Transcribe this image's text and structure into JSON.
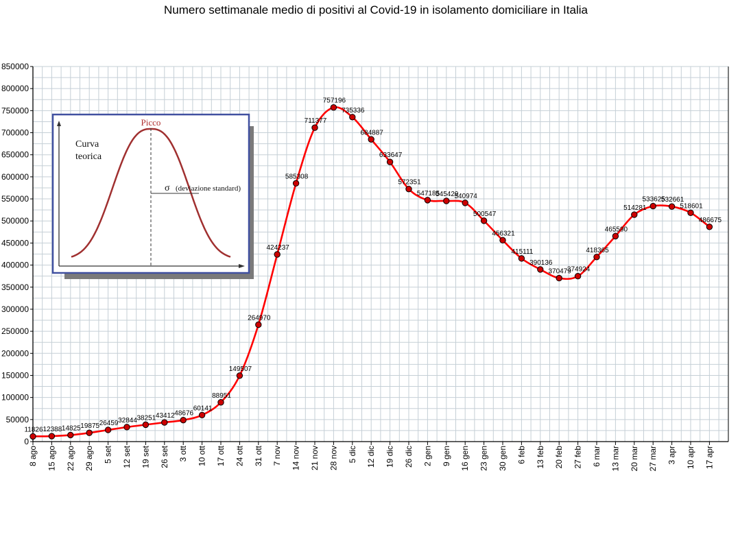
{
  "chart_data": {
    "type": "line",
    "title": "Numero settimanale medio di positivi al Covid-19  in isolamento domiciliare in Italia",
    "xlabel": "",
    "ylabel": "",
    "ylim": [
      0,
      850000
    ],
    "yticks": [
      "0",
      "50000",
      "100000",
      "150000",
      "200000",
      "250000",
      "300000",
      "350000",
      "400000",
      "450000",
      "500000",
      "550000",
      "600000",
      "650000",
      "700000",
      "750000",
      "800000",
      "850000"
    ],
    "grid": true,
    "categories": [
      "8 ago",
      "15 ago",
      "22 ago",
      "29 ago",
      "5 set",
      "12 set",
      "19 set",
      "26 set",
      "3 ott",
      "10 ott",
      "17 ott",
      "24 ott",
      "31 ott",
      "7 nov",
      "14 nov",
      "21 nov",
      "28 nov",
      "5 dic",
      "12 dic",
      "19 dic",
      "26 dic",
      "2 gen",
      "9 gen",
      "16 gen",
      "23 gen",
      "30 gen",
      "6 feb",
      "13 feb",
      "20 feb",
      "27 feb",
      "6 mar",
      "13 mar",
      "20 mar",
      "27 mar",
      "3 apr",
      "10 apr",
      "17 apr"
    ],
    "values": [
      11826,
      12388,
      14825,
      19875,
      26459,
      32844,
      38251,
      43412,
      48676,
      60141,
      88951,
      149507,
      264970,
      424237,
      585308,
      711377,
      757196,
      735336,
      684887,
      633647,
      572351,
      547185,
      545429,
      540974,
      500547,
      456321,
      415111,
      390136,
      370479,
      374924,
      418365,
      465590,
      514281,
      533625,
      532661,
      518601,
      486675
    ],
    "data_labels": [
      "11826",
      "12388",
      "14825",
      "19875",
      "26459",
      "32844",
      "38251",
      "43412",
      "48676",
      "60141",
      "88951",
      "149507",
      "264970",
      "424237",
      "585308",
      "711377",
      "757196",
      "735336",
      "684887",
      "633647",
      "572351",
      "547185",
      "545429",
      "540974",
      "500547",
      "456321",
      "415111",
      "390136",
      "370479",
      "374924",
      "418365",
      "465590",
      "514281",
      "533625",
      "532661",
      "518601",
      "486675"
    ],
    "series_color": "#ff0000",
    "marker_color": "#cc0000"
  },
  "inset": {
    "peak_label": "Picco",
    "curve_label_line1": "Curva",
    "curve_label_line2": "teorica",
    "sigma_symbol": "σ",
    "sigma_label": "(deviazione standard)",
    "curve_color": "#a03030",
    "border_color": "#4050a0"
  }
}
